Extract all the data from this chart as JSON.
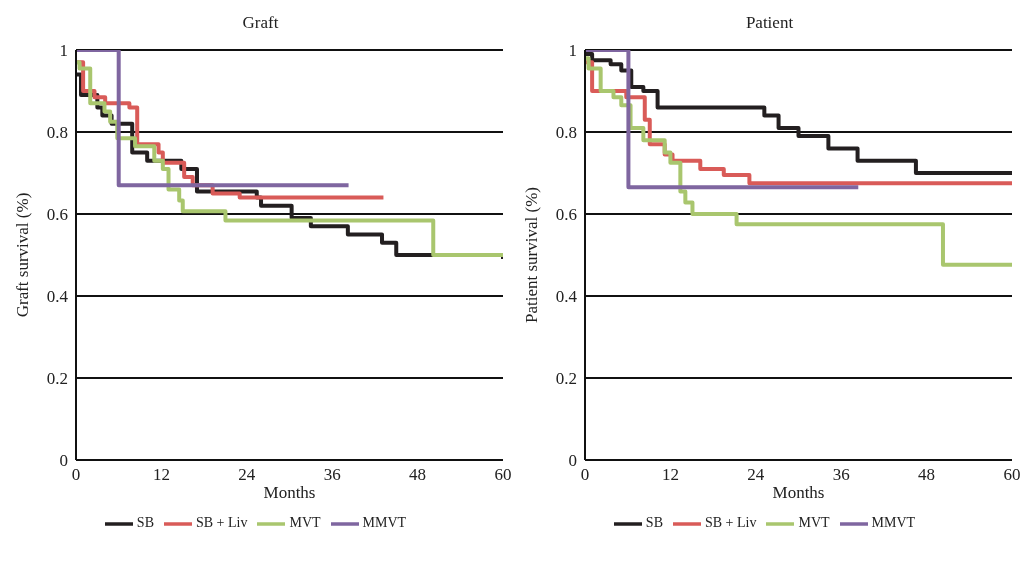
{
  "chart_data": [
    {
      "type": "step",
      "title": "Graft",
      "xlabel": "Months",
      "ylabel": "Graft survival (%)",
      "xlim": [
        0,
        60
      ],
      "xticks": [
        0,
        12,
        24,
        36,
        48,
        60
      ],
      "ylim": [
        0,
        1
      ],
      "yticks": [
        0,
        0.2,
        0.4,
        0.6,
        0.8,
        1
      ],
      "grid": "y",
      "legend": "bottom",
      "marker": "none",
      "line_style": "solid",
      "series": [
        {
          "name": "SB",
          "color": "#231f20",
          "x": [
            0,
            0.7,
            3,
            3.7,
            5,
            7.9,
            10,
            14.8,
            17,
            25.4,
            26,
            30.3,
            33,
            38.2,
            43,
            45,
            60
          ],
          "values": [
            0.94,
            0.89,
            0.86,
            0.84,
            0.82,
            0.75,
            0.73,
            0.71,
            0.655,
            0.64,
            0.62,
            0.59,
            0.57,
            0.55,
            0.53,
            0.5,
            0.49
          ]
        },
        {
          "name": "SB + Liv",
          "color": "#d95b58",
          "x": [
            0,
            1,
            2.6,
            4.1,
            7.5,
            8.6,
            9.2,
            11.6,
            12.2,
            15.2,
            16.4,
            19.2,
            23,
            43.2
          ],
          "values": [
            0.97,
            0.9,
            0.885,
            0.87,
            0.86,
            0.77,
            0.77,
            0.75,
            0.725,
            0.69,
            0.67,
            0.65,
            0.64,
            0.64
          ]
        },
        {
          "name": "MVT",
          "color": "#a9c66e",
          "x": [
            0,
            0.5,
            2,
            4,
            4.8,
            5.8,
            8.3,
            11,
            12.2,
            13,
            14.5,
            15,
            21,
            50.2,
            60
          ],
          "values": [
            0.97,
            0.955,
            0.87,
            0.85,
            0.825,
            0.785,
            0.765,
            0.73,
            0.71,
            0.66,
            0.633,
            0.607,
            0.584,
            0.5,
            0.5
          ]
        },
        {
          "name": "MMVT",
          "color": "#7f66a0",
          "x": [
            0,
            6,
            38.3
          ],
          "values": [
            1,
            0.67,
            0.67
          ]
        }
      ]
    },
    {
      "type": "step",
      "title": "Patient",
      "xlabel": "Months",
      "ylabel": "Patient survival (%)",
      "xlim": [
        0,
        60
      ],
      "xticks": [
        0,
        12,
        24,
        36,
        48,
        60
      ],
      "ylim": [
        0,
        1
      ],
      "yticks": [
        0,
        0.2,
        0.4,
        0.6,
        0.8,
        1
      ],
      "grid": "y",
      "legend": "bottom",
      "marker": "none",
      "line_style": "solid",
      "series": [
        {
          "name": "SB",
          "color": "#231f20",
          "x": [
            0,
            1,
            3.6,
            5.1,
            6.5,
            8.2,
            10.2,
            25.2,
            27.2,
            30,
            34.2,
            38.3,
            46.5,
            60
          ],
          "values": [
            0.99,
            0.975,
            0.965,
            0.95,
            0.91,
            0.9,
            0.86,
            0.84,
            0.81,
            0.79,
            0.76,
            0.73,
            0.7,
            0.7
          ]
        },
        {
          "name": "SB + Liv",
          "color": "#d95b58",
          "x": [
            0,
            1,
            5.8,
            8.4,
            9.1,
            11.2,
            12.3,
            16.2,
            19.5,
            23.1,
            60
          ],
          "values": [
            0.97,
            0.9,
            0.885,
            0.83,
            0.77,
            0.745,
            0.73,
            0.71,
            0.695,
            0.675,
            0.675
          ]
        },
        {
          "name": "MVT",
          "color": "#a9c66e",
          "x": [
            0,
            0.5,
            2.2,
            4,
            5.1,
            6.4,
            8.2,
            11.2,
            12,
            13.4,
            14.1,
            15.1,
            21.3,
            50.3,
            60
          ],
          "values": [
            0.98,
            0.955,
            0.9,
            0.885,
            0.865,
            0.81,
            0.78,
            0.75,
            0.725,
            0.655,
            0.628,
            0.6,
            0.575,
            0.476,
            0.476
          ]
        },
        {
          "name": "MMVT",
          "color": "#7f66a0",
          "x": [
            0,
            6.1,
            38.4
          ],
          "values": [
            1,
            0.665,
            0.665
          ]
        }
      ]
    }
  ]
}
